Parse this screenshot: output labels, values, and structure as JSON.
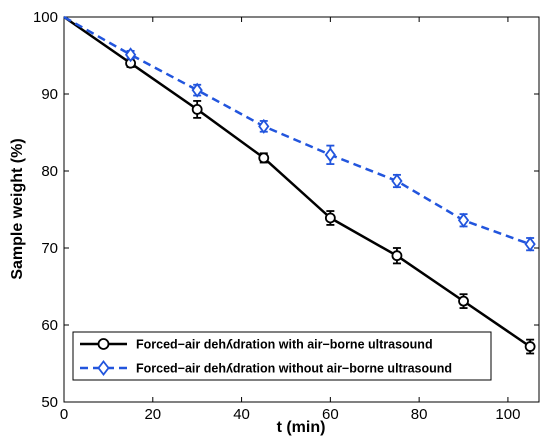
{
  "chart_data": {
    "type": "line",
    "title": "",
    "xlabel": "t (min)",
    "ylabel": "Sample weight (%)",
    "xlim": [
      0,
      107
    ],
    "ylim": [
      50,
      100
    ],
    "xticks": [
      0,
      20,
      40,
      60,
      80,
      100
    ],
    "yticks": [
      50,
      60,
      70,
      80,
      90,
      100
    ],
    "grid": false,
    "legend_position": "bottom-left",
    "series": [
      {
        "name": "Forced−air dehʎdration with air−borne ultrasound",
        "color": "#000000",
        "line_style": "solid",
        "marker": "circle",
        "x": [
          0,
          15,
          30,
          45,
          60,
          75,
          90,
          105
        ],
        "y": [
          100,
          94.0,
          88.0,
          81.7,
          73.9,
          69.0,
          63.1,
          57.2
        ],
        "error": [
          0,
          0.5,
          1.1,
          0.6,
          0.9,
          1.0,
          0.9,
          0.9
        ]
      },
      {
        "name": "Forced−air dehʎdration without air−borne ultrasound",
        "color": "#2255dd",
        "line_style": "dashed",
        "marker": "diamond",
        "x": [
          0,
          15,
          30,
          45,
          60,
          75,
          90,
          105
        ],
        "y": [
          100,
          95.1,
          90.5,
          85.8,
          82.1,
          78.7,
          73.6,
          70.5
        ],
        "error": [
          0,
          0.5,
          0.7,
          0.7,
          1.2,
          0.8,
          0.8,
          0.8
        ]
      }
    ]
  }
}
